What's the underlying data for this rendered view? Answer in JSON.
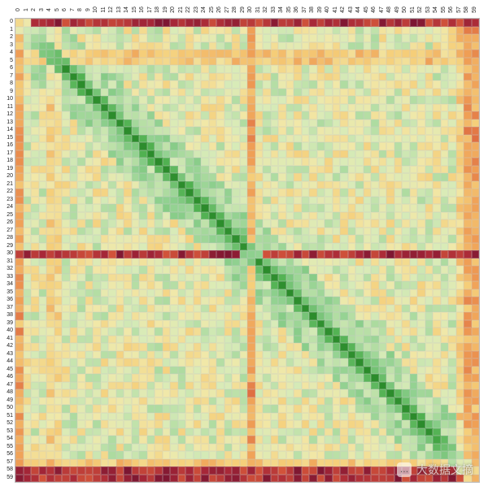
{
  "chart": {
    "type": "heatmap",
    "size": 60,
    "x_labels": [
      "0",
      "1",
      "2",
      "3",
      "4",
      "5",
      "6",
      "7",
      "8",
      "9",
      "10",
      "11",
      "12",
      "13",
      "14",
      "15",
      "16",
      "17",
      "18",
      "19",
      "20",
      "21",
      "22",
      "23",
      "24",
      "25",
      "26",
      "27",
      "28",
      "29",
      "30",
      "31",
      "32",
      "33",
      "34",
      "35",
      "36",
      "37",
      "38",
      "39",
      "40",
      "41",
      "42",
      "43",
      "44",
      "45",
      "46",
      "47",
      "48",
      "49",
      "50",
      "51",
      "52",
      "53",
      "54",
      "55",
      "56",
      "57",
      "58",
      "59"
    ],
    "y_labels": [
      "0",
      "1",
      "2",
      "3",
      "4",
      "5",
      "6",
      "7",
      "8",
      "9",
      "10",
      "11",
      "12",
      "13",
      "14",
      "15",
      "16",
      "17",
      "18",
      "19",
      "20",
      "21",
      "22",
      "23",
      "24",
      "25",
      "26",
      "27",
      "28",
      "29",
      "30",
      "31",
      "32",
      "33",
      "34",
      "35",
      "36",
      "37",
      "38",
      "39",
      "40",
      "41",
      "42",
      "43",
      "44",
      "45",
      "46",
      "47",
      "48",
      "49",
      "50",
      "51",
      "52",
      "53",
      "54",
      "55",
      "56",
      "57",
      "58",
      "59"
    ],
    "label_fontsize": 7,
    "background_color": "#ffffff",
    "grid_color": "#c8c8c8",
    "colormap": {
      "stops": [
        {
          "t": 0.0,
          "color": "#1a7a1a"
        },
        {
          "t": 0.15,
          "color": "#4fb04f"
        },
        {
          "t": 0.3,
          "color": "#8fd08f"
        },
        {
          "t": 0.45,
          "color": "#d8ebb8"
        },
        {
          "t": 0.55,
          "color": "#f1e8a8"
        },
        {
          "t": 0.65,
          "color": "#f5cf7a"
        },
        {
          "t": 0.75,
          "color": "#ef9e55"
        },
        {
          "t": 0.85,
          "color": "#d85a3a"
        },
        {
          "t": 0.93,
          "color": "#a82838"
        },
        {
          "t": 1.0,
          "color": "#6a0f2f"
        }
      ]
    },
    "value_range": [
      0.0,
      1.0
    ],
    "pattern": {
      "base_noise": 0.5,
      "noise_amplitude": 0.14,
      "diagonal_value": 0.03,
      "diagonal_band_width": 3,
      "diagonal_falloff": 0.12,
      "hot_rows": [
        0,
        30,
        58,
        59
      ],
      "hot_row_value": 0.92,
      "warm_rows": [
        4,
        5,
        57
      ],
      "warm_row_value": 0.72,
      "corner_hot": {
        "size": 6,
        "value": 0.88
      },
      "seed": 137
    }
  },
  "watermark": {
    "icon": "…",
    "text": "大数据文摘"
  }
}
